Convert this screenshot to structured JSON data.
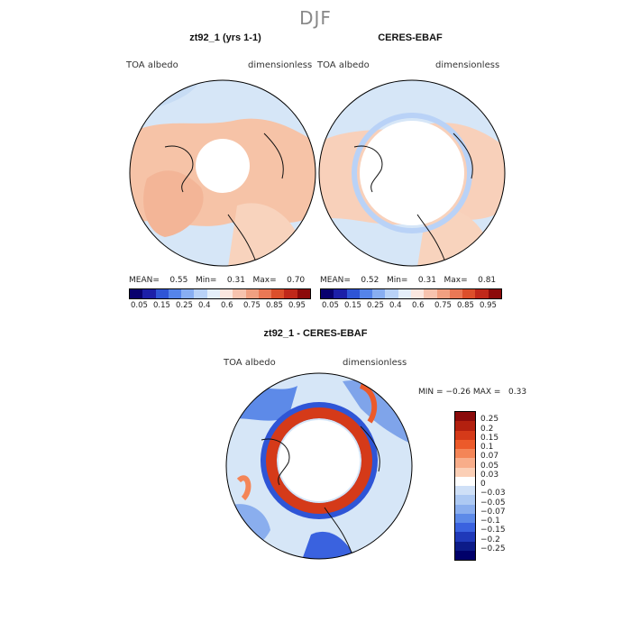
{
  "season": "DJF",
  "panels": [
    {
      "title": "zt92_1 (yrs 1-1)",
      "left_label": "TOA albedo",
      "right_label": "dimensionless",
      "stats": "MEAN=    0.55   Min=    0.31   Max=    0.70"
    },
    {
      "title": "CERES-EBAF",
      "left_label": "TOA albedo",
      "right_label": "dimensionless",
      "stats": "MEAN=    0.52   Min=    0.31   Max=    0.81"
    }
  ],
  "abs_colorbar": {
    "ticks": [
      "0.05",
      "0.15",
      "0.25",
      "0.4",
      "0.6",
      "0.75",
      "0.85",
      "0.95"
    ],
    "colors": [
      "#08006e",
      "#1c1fa8",
      "#2f55d6",
      "#5584ea",
      "#88aef2",
      "#b9d2f7",
      "#e4eef9",
      "#fbe7df",
      "#f7c3ae",
      "#f1a081",
      "#ea7855",
      "#dc4f2b",
      "#c0281a",
      "#8c0a0a"
    ]
  },
  "diff_panel": {
    "title": "zt92_1 - CERES-EBAF",
    "left_label": "TOA albedo",
    "right_label": "dimensionless",
    "min_label": "MIN =",
    "min_value": "−0.26",
    "max_label": "MAX =",
    "max_value": "0.33"
  },
  "diff_colorbar": {
    "labels": [
      "0.25",
      "0.2",
      "0.15",
      "0.1",
      "0.07",
      "0.05",
      "0.03",
      "0",
      "−0.03",
      "−0.05",
      "−0.07",
      "−0.1",
      "−0.15",
      "−0.2",
      "−0.25"
    ],
    "colors": [
      "#8b0b0b",
      "#b3200f",
      "#d53a19",
      "#ec5a2a",
      "#f48557",
      "#f8ad8a",
      "#fbcfb6",
      "#ffffff",
      "#cfe0f7",
      "#adc9f3",
      "#8aaeee",
      "#5d8ae8",
      "#3a62df",
      "#1f39b9",
      "#0c1b88",
      "#00006a"
    ]
  },
  "colors": {
    "ocean_light_blue": "#d6e6f7",
    "land_salmon": "#f6c3a7",
    "ring_red": "#d8401f",
    "pole_white": "#ffffff",
    "diff_blue": "#7fa4ea"
  }
}
